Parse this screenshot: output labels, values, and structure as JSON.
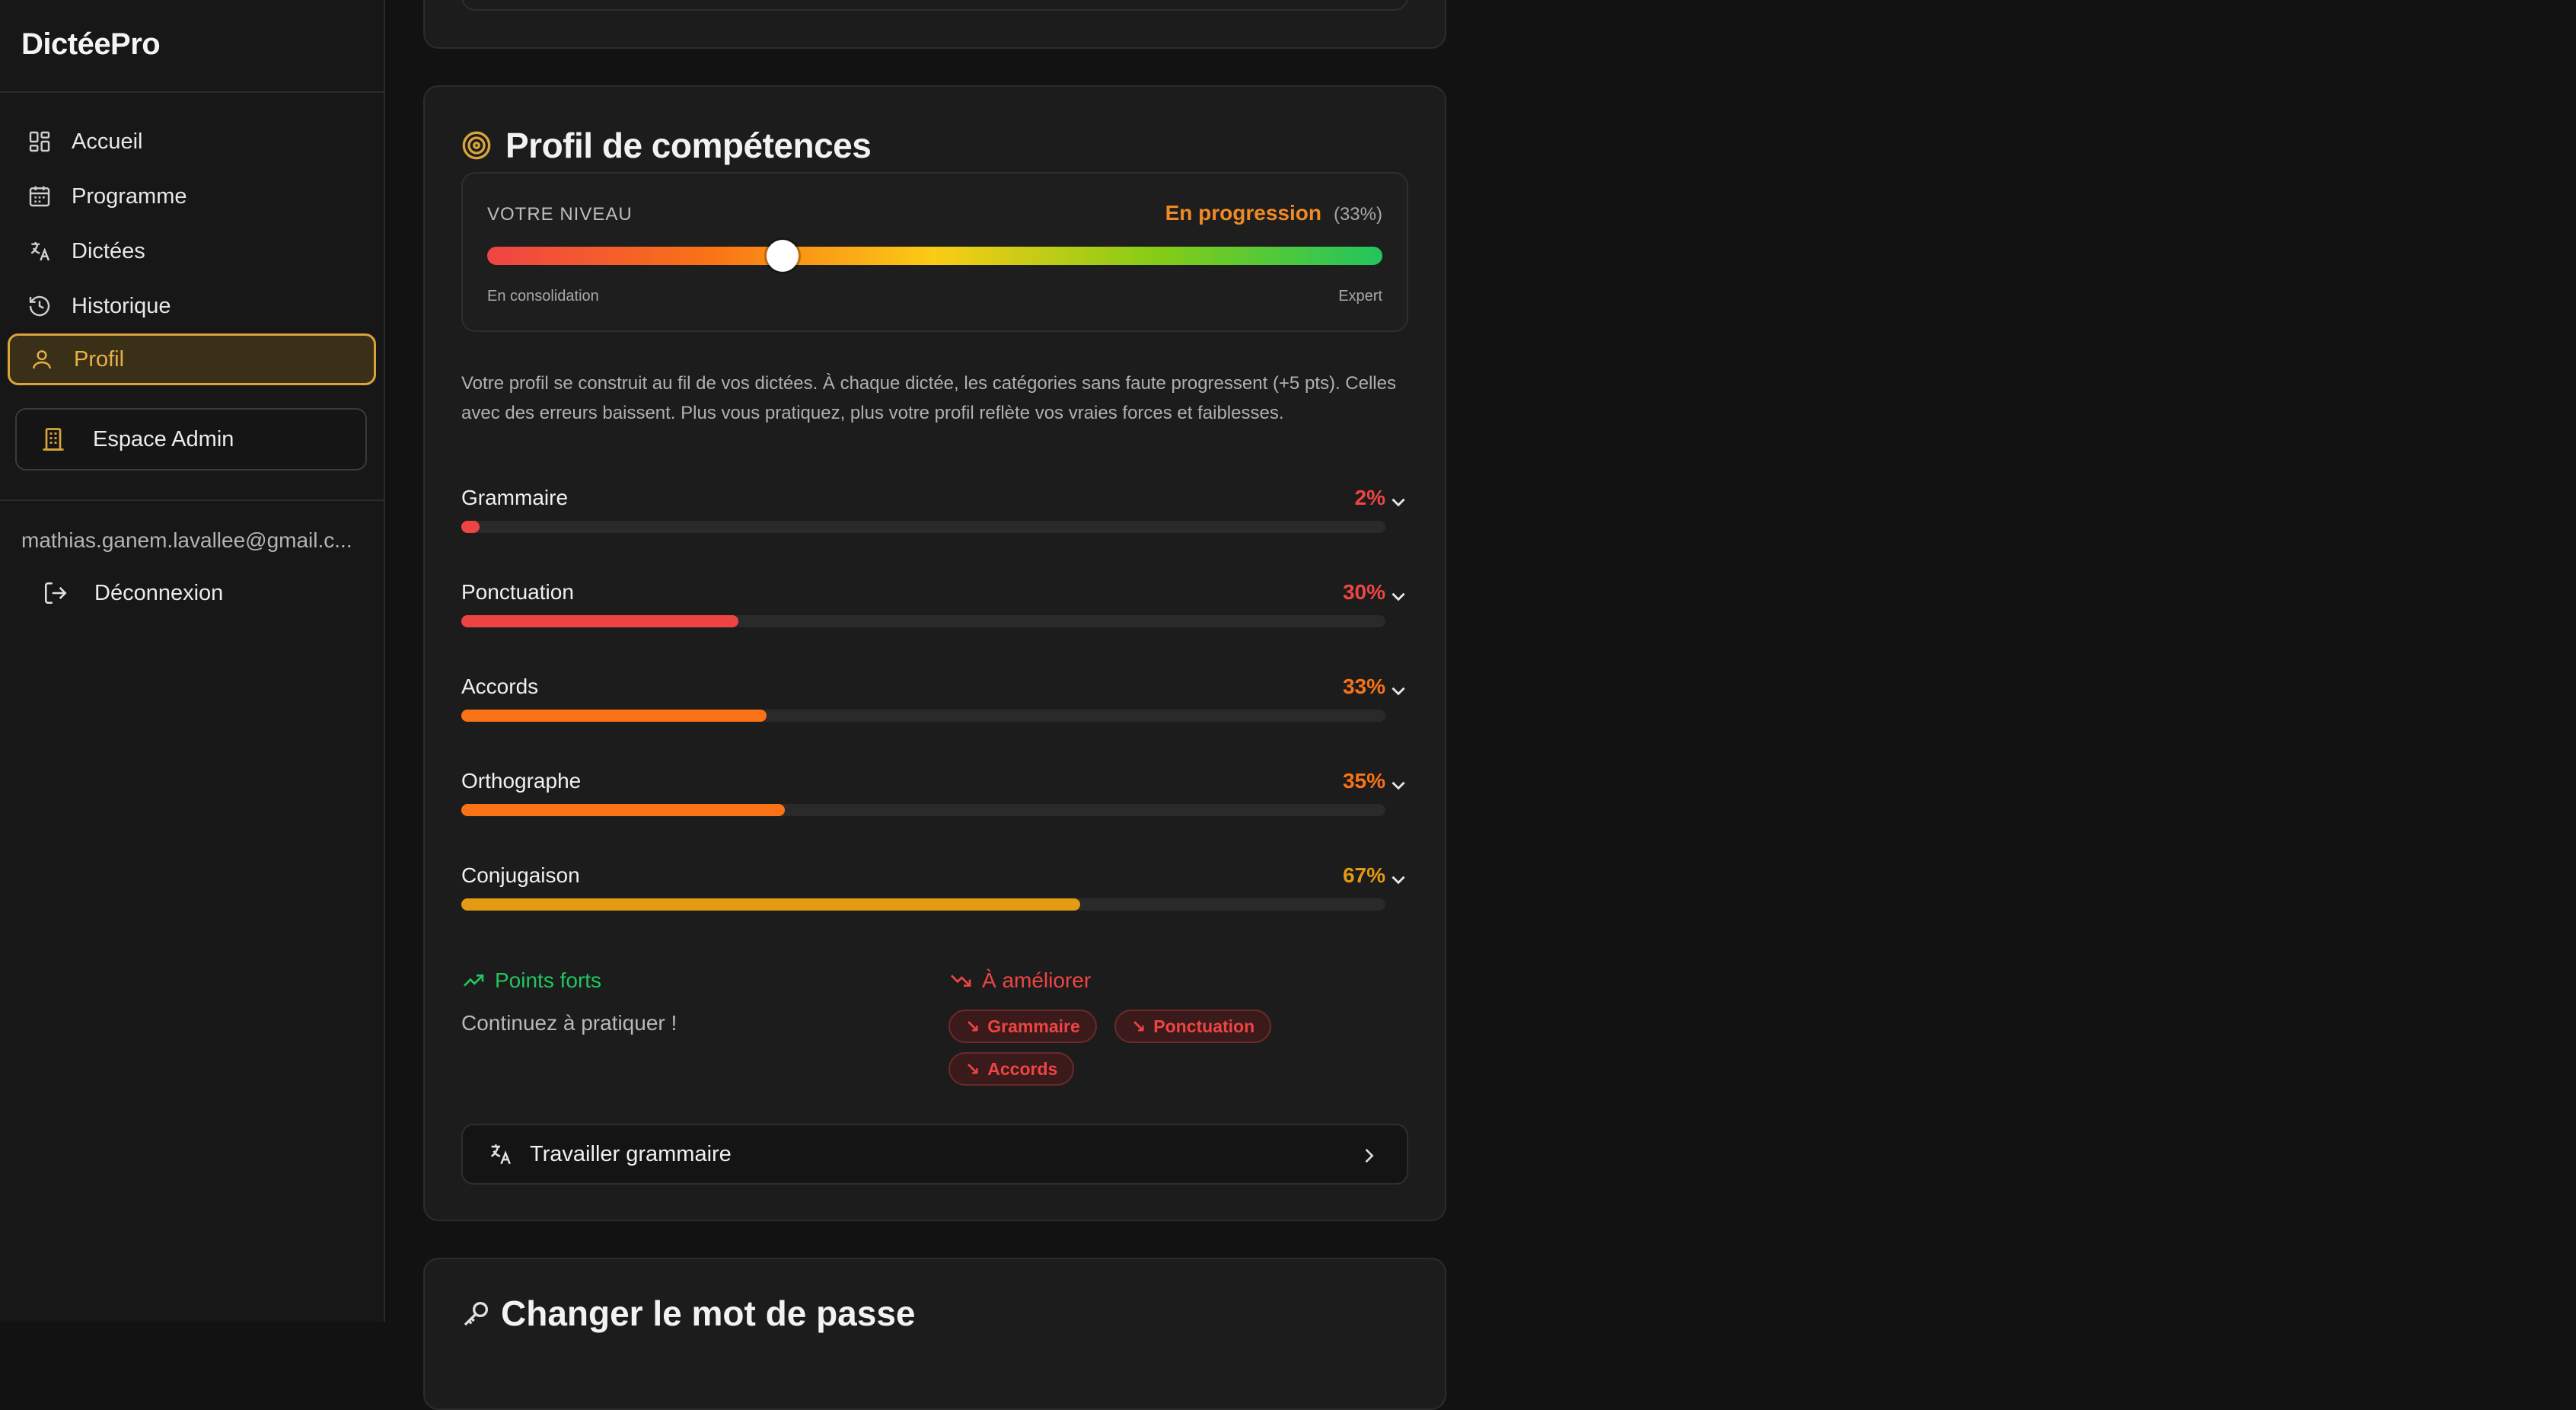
{
  "app": {
    "brand": "DictéePro"
  },
  "sidebar": {
    "items": [
      {
        "label": "Accueil",
        "icon": "dashboard-icon"
      },
      {
        "label": "Programme",
        "icon": "calendar-icon"
      },
      {
        "label": "Dictées",
        "icon": "translate-icon"
      },
      {
        "label": "Historique",
        "icon": "history-icon"
      },
      {
        "label": "Profil",
        "icon": "user-icon",
        "active": true
      }
    ],
    "admin": {
      "label": "Espace Admin",
      "icon": "building-icon"
    },
    "email": "mathias.ganem.lavallee@gmail.c...",
    "logout": {
      "label": "Déconnexion",
      "icon": "logout-icon"
    }
  },
  "profile": {
    "title": "Profil de compétences",
    "title_icon": "target-icon",
    "level": {
      "label": "VOTRE NIVEAU",
      "value": "En progression",
      "percent_text": "(33%)",
      "percent": 33,
      "min_label": "En consolidation",
      "max_label": "Expert"
    },
    "description": "Votre profil se construit au fil de vos dictées. À chaque dictée, les catégories sans faute progressent (+5 pts). Celles avec des erreurs baissent. Plus vous pratiquez, plus votre profil reflète vos vraies forces et faiblesses.",
    "categories": [
      {
        "name": "Grammaire",
        "percent_text": "2%",
        "percent": 2,
        "color": "#ef4444"
      },
      {
        "name": "Ponctuation",
        "percent_text": "30%",
        "percent": 30,
        "color": "#ef4444"
      },
      {
        "name": "Accords",
        "percent_text": "33%",
        "percent": 33,
        "color": "#f97316"
      },
      {
        "name": "Orthographe",
        "percent_text": "35%",
        "percent": 35,
        "color": "#f97316"
      },
      {
        "name": "Conjugaison",
        "percent_text": "67%",
        "percent": 67,
        "color": "#e29b12"
      }
    ],
    "strengths": {
      "title": "Points forts",
      "empty_text": "Continuez à pratiquer !",
      "color": "#22c55e"
    },
    "weaknesses": {
      "title": "À améliorer",
      "color": "#ef4444",
      "chips": [
        "Grammaire",
        "Ponctuation",
        "Accords"
      ]
    },
    "cta": {
      "label": "Travailler grammaire"
    }
  },
  "password_section": {
    "title": "Changer le mot de passe"
  },
  "colors": {
    "accent": "#d9a53a",
    "background": "#121212",
    "card": "#1c1c1c"
  }
}
